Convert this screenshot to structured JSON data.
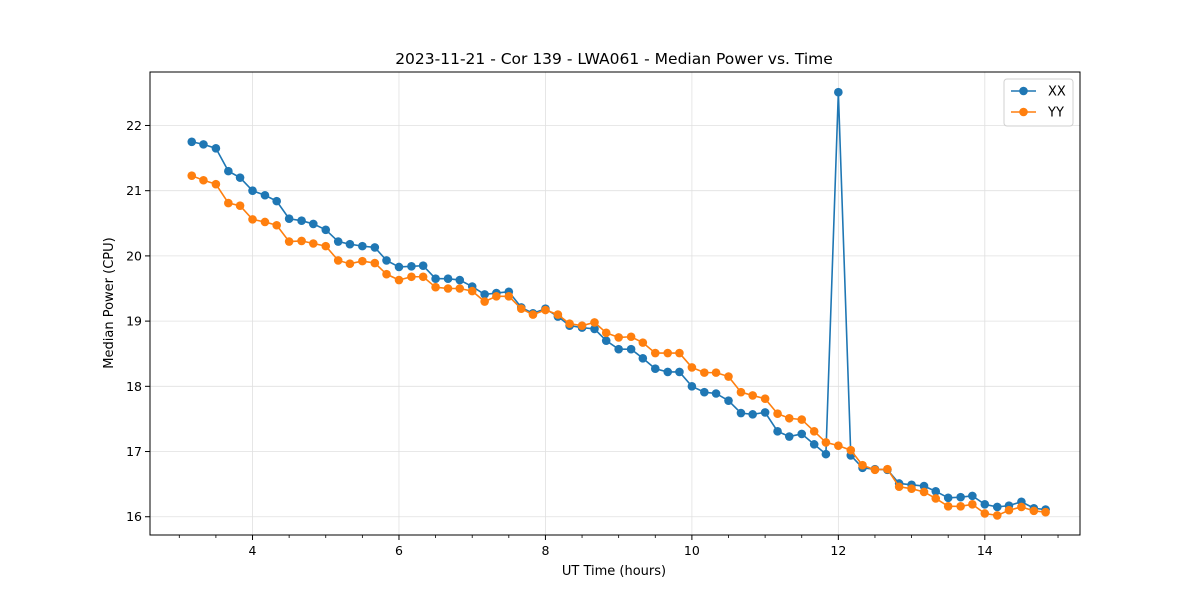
{
  "chart_data": {
    "type": "line",
    "title": "2023-11-21 - Cor 139 - LWA061 - Median Power vs. Time",
    "xlabel": "UT Time (hours)",
    "ylabel": "Median Power (CPU)",
    "xlim": [
      2.6,
      15.3
    ],
    "ylim": [
      15.72,
      22.82
    ],
    "xticks": [
      4,
      6,
      8,
      10,
      12,
      14
    ],
    "xtick_labels": [
      "4",
      "6",
      "8",
      "10",
      "12",
      "14"
    ],
    "yticks": [
      16,
      17,
      18,
      19,
      20,
      21,
      22
    ],
    "ytick_labels": [
      "16",
      "17",
      "18",
      "19",
      "20",
      "21",
      "22"
    ],
    "grid": true,
    "legend_position": "top-right",
    "x": [
      3.17,
      3.33,
      3.5,
      3.67,
      3.83,
      4.0,
      4.17,
      4.33,
      4.5,
      4.67,
      4.83,
      5.0,
      5.17,
      5.33,
      5.5,
      5.67,
      5.83,
      6.0,
      6.17,
      6.33,
      6.5,
      6.67,
      6.83,
      7.0,
      7.17,
      7.33,
      7.5,
      7.67,
      7.83,
      8.0,
      8.17,
      8.33,
      8.5,
      8.67,
      8.83,
      9.0,
      9.17,
      9.33,
      9.5,
      9.67,
      9.83,
      10.0,
      10.17,
      10.33,
      10.5,
      10.67,
      10.83,
      11.0,
      11.17,
      11.33,
      11.5,
      11.67,
      11.83,
      12.0,
      12.17,
      12.33,
      12.5,
      12.67,
      12.83,
      13.0,
      13.17,
      13.33,
      13.5,
      13.67,
      13.83,
      14.0,
      14.17,
      14.33,
      14.5,
      14.67,
      14.83
    ],
    "series": [
      {
        "name": "XX",
        "color": "#1f77b4",
        "values": [
          21.75,
          21.71,
          21.65,
          21.3,
          21.2,
          21.0,
          20.93,
          20.84,
          20.57,
          20.54,
          20.49,
          20.4,
          20.22,
          20.18,
          20.15,
          20.13,
          19.93,
          19.83,
          19.84,
          19.85,
          19.65,
          19.65,
          19.63,
          19.53,
          19.41,
          19.43,
          19.45,
          19.21,
          19.12,
          19.19,
          19.07,
          18.93,
          18.9,
          18.88,
          18.7,
          18.57,
          18.57,
          18.43,
          18.27,
          18.22,
          18.22,
          18.0,
          17.91,
          17.89,
          17.78,
          17.59,
          17.57,
          17.6,
          17.31,
          17.23,
          17.27,
          17.11,
          16.96,
          22.51,
          16.94,
          16.75,
          16.73,
          16.72,
          16.51,
          16.49,
          16.47,
          16.39,
          16.29,
          16.3,
          16.32,
          16.19,
          16.15,
          16.17,
          16.23,
          16.13,
          16.11
        ]
      },
      {
        "name": "YY",
        "color": "#ff7f0e",
        "values": [
          21.23,
          21.16,
          21.1,
          20.81,
          20.77,
          20.56,
          20.52,
          20.47,
          20.22,
          20.23,
          20.19,
          20.15,
          19.93,
          19.88,
          19.92,
          19.89,
          19.72,
          19.63,
          19.68,
          19.68,
          19.52,
          19.5,
          19.5,
          19.46,
          19.3,
          19.38,
          19.38,
          19.19,
          19.1,
          19.17,
          19.1,
          18.96,
          18.93,
          18.98,
          18.82,
          18.75,
          18.76,
          18.67,
          18.51,
          18.51,
          18.51,
          18.29,
          18.21,
          18.21,
          18.15,
          17.91,
          17.86,
          17.81,
          17.58,
          17.51,
          17.49,
          17.31,
          17.14,
          17.09,
          17.02,
          16.79,
          16.72,
          16.73,
          16.46,
          16.43,
          16.38,
          16.28,
          16.16,
          16.16,
          16.19,
          16.05,
          16.02,
          16.1,
          16.15,
          16.09,
          16.07
        ]
      }
    ]
  }
}
